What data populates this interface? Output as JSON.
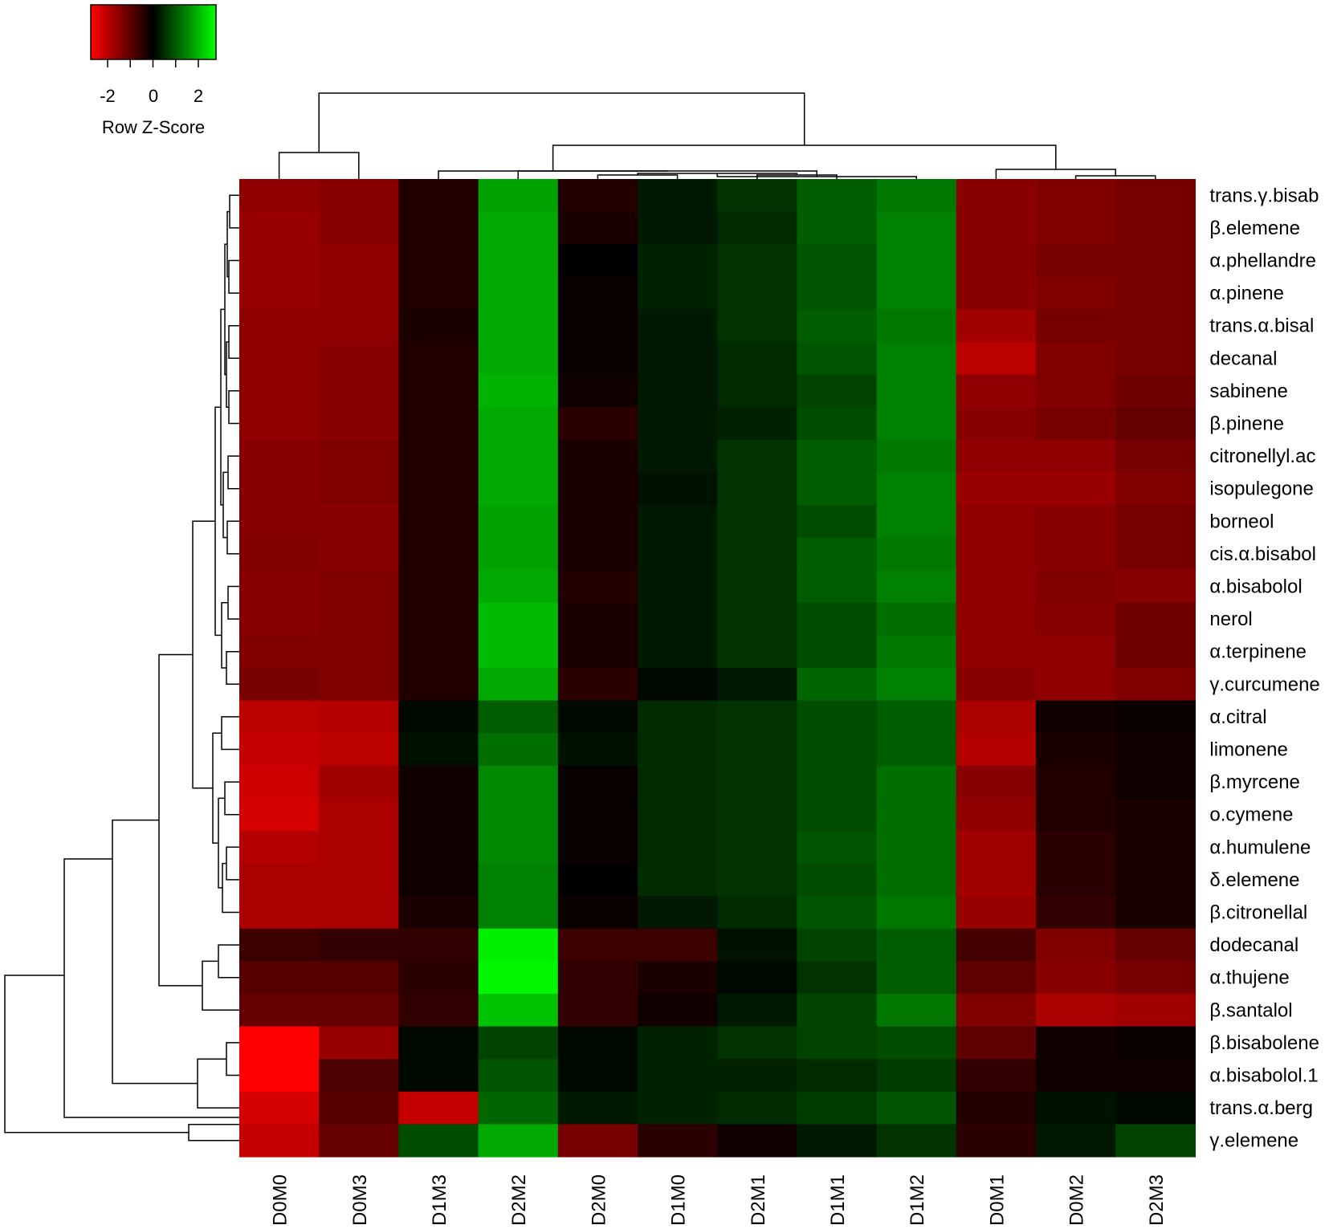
{
  "chart_data": {
    "type": "heatmap",
    "title": "",
    "xlabel": "",
    "ylabel": "",
    "columns": [
      "D0M0",
      "D0M3",
      "D1M3",
      "D2M2",
      "D2M0",
      "D1M0",
      "D2M1",
      "D1M1",
      "D1M2",
      "D0M1",
      "D0M2",
      "D2M3"
    ],
    "rows": [
      "trans.γ.bisab",
      "β.elemene",
      "α.phellandre",
      "α.pinene",
      "trans.α.bisal",
      "decanal",
      "sabinene",
      "β.pinene",
      "citronellyl.ac",
      "isopulegone",
      "borneol",
      "cis.α.bisabol",
      "α.bisabolol",
      "nerol",
      "α.terpinene",
      "γ.curcumene",
      "α.citral",
      "limonene",
      "β.myrcene",
      "o.cymene",
      "α.humulene",
      "δ.elemene",
      "β.citronellal",
      "dodecanal",
      "α.thujene",
      "β.santalol",
      "β.bisabolene",
      "α.bisabolol.1",
      "trans.α.berg",
      "γ.elemene"
    ],
    "values": [
      [
        -1.7,
        -1.6,
        -0.4,
        1.9,
        -0.4,
        0.3,
        0.6,
        1.1,
        1.4,
        -1.6,
        -1.5,
        -1.4
      ],
      [
        -1.8,
        -1.6,
        -0.4,
        2.0,
        -0.3,
        0.3,
        0.5,
        1.1,
        1.5,
        -1.6,
        -1.5,
        -1.4
      ],
      [
        -1.8,
        -1.7,
        -0.4,
        2.0,
        0.0,
        0.4,
        0.6,
        1.0,
        1.5,
        -1.6,
        -1.4,
        -1.4
      ],
      [
        -1.8,
        -1.7,
        -0.4,
        2.0,
        -0.1,
        0.4,
        0.6,
        1.0,
        1.5,
        -1.6,
        -1.5,
        -1.4
      ],
      [
        -1.7,
        -1.7,
        -0.3,
        2.0,
        -0.1,
        0.3,
        0.6,
        1.1,
        1.4,
        -1.9,
        -1.4,
        -1.4
      ],
      [
        -1.7,
        -1.6,
        -0.4,
        2.0,
        -0.1,
        0.3,
        0.5,
        1.0,
        1.5,
        -2.2,
        -1.5,
        -1.4
      ],
      [
        -1.7,
        -1.6,
        -0.4,
        2.1,
        -0.2,
        0.3,
        0.5,
        0.8,
        1.5,
        -1.7,
        -1.5,
        -1.3
      ],
      [
        -1.7,
        -1.6,
        -0.4,
        2.0,
        -0.5,
        0.3,
        0.4,
        0.9,
        1.5,
        -1.6,
        -1.4,
        -1.2
      ],
      [
        -1.6,
        -1.5,
        -0.4,
        2.0,
        -0.3,
        0.3,
        0.6,
        1.1,
        1.4,
        -1.7,
        -1.7,
        -1.4
      ],
      [
        -1.6,
        -1.5,
        -0.4,
        2.0,
        -0.3,
        0.2,
        0.6,
        1.1,
        1.5,
        -1.8,
        -1.8,
        -1.5
      ],
      [
        -1.6,
        -1.6,
        -0.4,
        1.9,
        -0.3,
        0.3,
        0.6,
        0.9,
        1.5,
        -1.7,
        -1.6,
        -1.4
      ],
      [
        -1.5,
        -1.6,
        -0.4,
        1.9,
        -0.3,
        0.3,
        0.6,
        1.1,
        1.4,
        -1.7,
        -1.6,
        -1.4
      ],
      [
        -1.6,
        -1.5,
        -0.4,
        2.0,
        -0.4,
        0.3,
        0.6,
        1.1,
        1.5,
        -1.7,
        -1.5,
        -1.6
      ],
      [
        -1.6,
        -1.5,
        -0.4,
        2.2,
        -0.3,
        0.3,
        0.6,
        0.9,
        1.3,
        -1.7,
        -1.6,
        -1.3
      ],
      [
        -1.5,
        -1.5,
        -0.4,
        2.2,
        -0.3,
        0.3,
        0.6,
        0.9,
        1.4,
        -1.7,
        -1.7,
        -1.3
      ],
      [
        -1.4,
        -1.5,
        -0.4,
        2.0,
        -0.5,
        0.1,
        0.3,
        1.2,
        1.5,
        -1.6,
        -1.7,
        -1.5
      ],
      [
        -2.2,
        -2.1,
        0.1,
        1.1,
        0.1,
        0.5,
        0.6,
        0.9,
        1.1,
        -2.0,
        -0.2,
        -0.1
      ],
      [
        -2.3,
        -2.2,
        0.2,
        1.3,
        0.2,
        0.5,
        0.6,
        0.9,
        1.1,
        -2.1,
        -0.3,
        -0.2
      ],
      [
        -2.4,
        -1.9,
        -0.2,
        1.6,
        -0.1,
        0.5,
        0.6,
        0.9,
        1.3,
        -1.6,
        -0.4,
        -0.2
      ],
      [
        -2.5,
        -2.0,
        -0.2,
        1.6,
        -0.1,
        0.5,
        0.6,
        0.9,
        1.3,
        -1.7,
        -0.4,
        -0.3
      ],
      [
        -2.1,
        -2.0,
        -0.2,
        1.6,
        -0.1,
        0.5,
        0.6,
        1.0,
        1.3,
        -1.9,
        -0.5,
        -0.3
      ],
      [
        -2.0,
        -2.0,
        -0.2,
        1.5,
        0.0,
        0.5,
        0.6,
        0.9,
        1.3,
        -1.9,
        -0.5,
        -0.3
      ],
      [
        -2.0,
        -2.0,
        -0.3,
        1.5,
        -0.1,
        0.3,
        0.5,
        1.0,
        1.4,
        -1.8,
        -0.6,
        -0.3
      ],
      [
        -0.7,
        -0.6,
        -0.6,
        2.8,
        -0.7,
        -0.7,
        0.2,
        0.8,
        1.1,
        -0.8,
        -1.5,
        -1.2
      ],
      [
        -1.0,
        -1.0,
        -0.5,
        2.9,
        -0.6,
        -0.3,
        0.1,
        0.6,
        1.1,
        -1.1,
        -1.6,
        -1.4
      ],
      [
        -1.2,
        -1.2,
        -0.6,
        2.3,
        -0.6,
        -0.2,
        0.3,
        0.8,
        1.4,
        -1.5,
        -2.0,
        -1.9
      ],
      [
        -3.1,
        -1.8,
        0.1,
        0.8,
        0.1,
        0.4,
        0.6,
        0.8,
        0.9,
        -1.1,
        -0.2,
        -0.1
      ],
      [
        -3.3,
        -0.9,
        0.1,
        1.0,
        0.1,
        0.4,
        0.4,
        0.5,
        0.7,
        -0.6,
        -0.2,
        -0.2
      ],
      [
        -2.5,
        -1.0,
        -2.3,
        1.2,
        0.3,
        0.4,
        0.5,
        0.7,
        1.0,
        -0.4,
        0.2,
        0.1
      ],
      [
        -2.3,
        -1.2,
        0.9,
        2.0,
        -1.4,
        -0.5,
        -0.2,
        0.3,
        0.6,
        -0.5,
        0.3,
        0.8
      ]
    ],
    "color_key": {
      "label": "Row Z-Score",
      "ticks": [
        "-2",
        "0",
        "2"
      ],
      "range": [
        -3,
        3
      ],
      "low_color": "#ff0000",
      "mid_color": "#000000",
      "high_color": "#00ff00"
    }
  }
}
